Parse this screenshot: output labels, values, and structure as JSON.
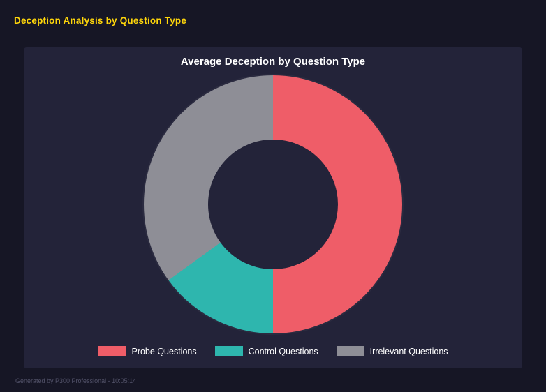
{
  "page": {
    "title": "Deception Analysis by Question Type",
    "footer": "Generated by P300 Professional - 10:05:14"
  },
  "chart_data": {
    "type": "pie",
    "variant": "donut",
    "title": "Average Deception by Question Type",
    "categories": [
      "Probe Questions",
      "Control Questions",
      "Irrelevant Questions"
    ],
    "values": [
      50,
      15,
      35
    ],
    "values_note": "estimated proportions (percent of donut), no numeric labels shown",
    "colors": [
      "#ef5d68",
      "#2eb6ae",
      "#8e8e96"
    ],
    "hole_ratio": 0.5,
    "start_angle_deg": 0,
    "direction": "clockwise",
    "legend_position": "bottom"
  },
  "theme": {
    "background": "#161625",
    "panel": "#232339",
    "accent_title": "#ffd60a",
    "chart_title_color": "#ffffff",
    "legend_text_color": "#ffffff",
    "footer_color": "#53536a"
  }
}
